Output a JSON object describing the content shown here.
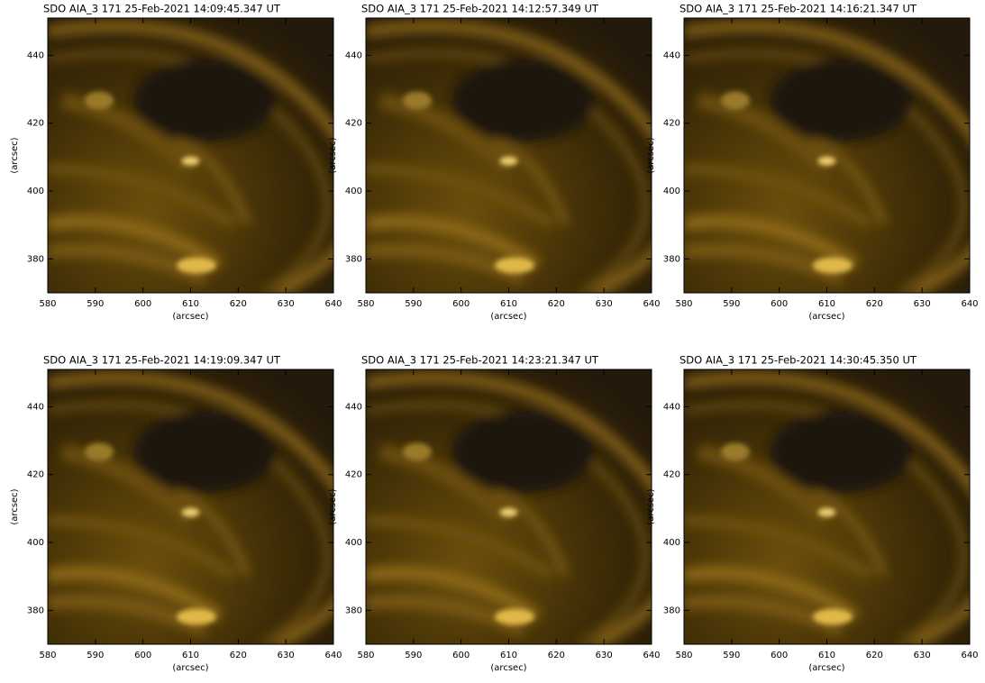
{
  "chart_data": [
    {
      "type": "image",
      "title": "SDO AIA_3 171 25-Feb-2021 14:09:45.347 UT",
      "xlabel": "(arcsec)",
      "ylabel": "(arcsec)",
      "xlim": [
        580,
        640
      ],
      "ylim": [
        370,
        451
      ],
      "xticks": [
        580,
        590,
        600,
        610,
        620,
        630,
        640
      ],
      "yticks": [
        380,
        400,
        420,
        440
      ]
    },
    {
      "type": "image",
      "title": "SDO AIA_3 171 25-Feb-2021 14:12:57.349 UT",
      "xlabel": "(arcsec)",
      "ylabel": "(arcsec)",
      "xlim": [
        580,
        640
      ],
      "ylim": [
        370,
        451
      ],
      "xticks": [
        580,
        590,
        600,
        610,
        620,
        630,
        640
      ],
      "yticks": [
        380,
        400,
        420,
        440
      ]
    },
    {
      "type": "image",
      "title": "SDO AIA_3 171 25-Feb-2021 14:16:21.347 UT",
      "xlabel": "(arcsec)",
      "ylabel": "(arcsec)",
      "xlim": [
        580,
        640
      ],
      "ylim": [
        370,
        451
      ],
      "xticks": [
        580,
        590,
        600,
        610,
        620,
        630,
        640
      ],
      "yticks": [
        380,
        400,
        420,
        440
      ]
    },
    {
      "type": "image",
      "title": "SDO AIA_3 171 25-Feb-2021 14:19:09.347 UT",
      "xlabel": "(arcsec)",
      "ylabel": "(arcsec)",
      "xlim": [
        580,
        640
      ],
      "ylim": [
        370,
        451
      ],
      "xticks": [
        580,
        590,
        600,
        610,
        620,
        630,
        640
      ],
      "yticks": [
        380,
        400,
        420,
        440
      ]
    },
    {
      "type": "image",
      "title": "SDO AIA_3 171 25-Feb-2021 14:23:21.347 UT",
      "xlabel": "(arcsec)",
      "ylabel": "(arcsec)",
      "xlim": [
        580,
        640
      ],
      "ylim": [
        370,
        451
      ],
      "xticks": [
        580,
        590,
        600,
        610,
        620,
        630,
        640
      ],
      "yticks": [
        380,
        400,
        420,
        440
      ]
    },
    {
      "type": "image",
      "title": "SDO AIA_3 171 25-Feb-2021 14:30:45.350 UT",
      "xlabel": "(arcsec)",
      "ylabel": "(arcsec)",
      "xlim": [
        580,
        640
      ],
      "ylim": [
        370,
        451
      ],
      "xticks": [
        580,
        590,
        600,
        610,
        620,
        630,
        640
      ],
      "yticks": [
        380,
        400,
        420,
        440
      ]
    }
  ]
}
